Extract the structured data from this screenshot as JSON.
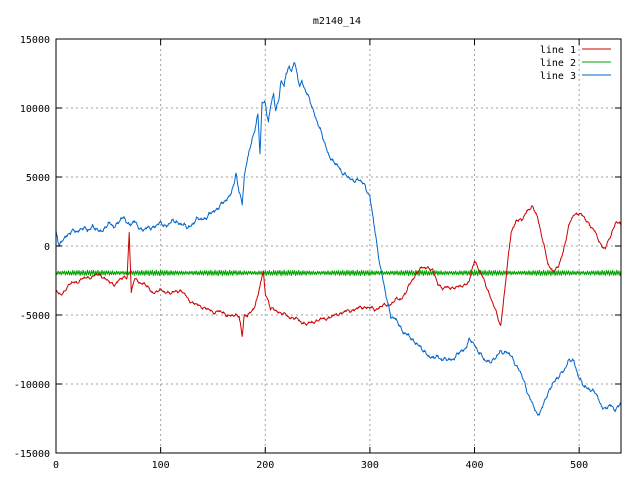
{
  "chart_data": {
    "type": "line",
    "title": "m2140_14",
    "xlabel": "",
    "ylabel": "",
    "xlim": [
      0,
      540
    ],
    "ylim": [
      -15000,
      15000
    ],
    "xticks": [
      0,
      100,
      200,
      300,
      400,
      500
    ],
    "yticks": [
      -15000,
      -10000,
      -5000,
      0,
      5000,
      10000,
      15000
    ],
    "grid": true,
    "legend_position": "top-right",
    "series": [
      {
        "name": "line 1",
        "color": "#cc0000",
        "x": [
          0,
          5,
          10,
          15,
          20,
          25,
          30,
          35,
          40,
          45,
          50,
          55,
          60,
          65,
          68,
          70,
          72,
          75,
          80,
          85,
          90,
          95,
          100,
          105,
          110,
          115,
          120,
          125,
          130,
          135,
          140,
          145,
          150,
          155,
          160,
          165,
          170,
          175,
          178,
          180,
          183,
          185,
          190,
          195,
          198,
          200,
          203,
          205,
          210,
          215,
          220,
          225,
          230,
          235,
          240,
          245,
          250,
          255,
          260,
          265,
          270,
          275,
          280,
          285,
          290,
          295,
          300,
          305,
          310,
          315,
          320,
          325,
          330,
          335,
          340,
          345,
          350,
          355,
          360,
          365,
          370,
          375,
          380,
          385,
          390,
          395,
          400,
          405,
          410,
          415,
          420,
          425,
          430,
          435,
          440,
          445,
          450,
          455,
          460,
          465,
          470,
          475,
          480,
          485,
          490,
          495,
          500,
          505,
          510,
          515,
          520,
          525,
          530,
          535,
          540
        ],
        "y": [
          -3300,
          -3600,
          -3000,
          -2700,
          -2600,
          -2400,
          -2300,
          -2200,
          -2100,
          -2200,
          -2600,
          -2800,
          -2500,
          -2300,
          -2200,
          1000,
          -3400,
          -2400,
          -2600,
          -2800,
          -3200,
          -3400,
          -3200,
          -3300,
          -3500,
          -3200,
          -3300,
          -3700,
          -4100,
          -4300,
          -4400,
          -4600,
          -4800,
          -4700,
          -4900,
          -5000,
          -5100,
          -5000,
          -6500,
          -5000,
          -5200,
          -4800,
          -4400,
          -3000,
          -1700,
          -3400,
          -4000,
          -4600,
          -4600,
          -4900,
          -5000,
          -5200,
          -5300,
          -5500,
          -5700,
          -5500,
          -5400,
          -5300,
          -5200,
          -5100,
          -4900,
          -4800,
          -4700,
          -4600,
          -4500,
          -4400,
          -4500,
          -4600,
          -4400,
          -4300,
          -4200,
          -3900,
          -3800,
          -3300,
          -2500,
          -1900,
          -1600,
          -1500,
          -1800,
          -2700,
          -3100,
          -3000,
          -3000,
          -3000,
          -2800,
          -2600,
          -1000,
          -1800,
          -2700,
          -3600,
          -4700,
          -5800,
          -2400,
          1000,
          1900,
          1800,
          2600,
          2800,
          2200,
          500,
          -1300,
          -1800,
          -1600,
          -300,
          1400,
          2300,
          2400,
          2000,
          1600,
          1000,
          200,
          -200,
          700,
          1800,
          1500
        ]
      },
      {
        "name": "line 2",
        "color": "#00a000",
        "x": [
          0,
          540
        ],
        "y": [
          -1950,
          -1950
        ],
        "oscillation": 200
      },
      {
        "name": "line 3",
        "color": "#0066cc",
        "x": [
          0,
          3,
          6,
          10,
          15,
          20,
          25,
          30,
          35,
          40,
          45,
          50,
          55,
          60,
          65,
          70,
          75,
          80,
          85,
          90,
          95,
          100,
          105,
          110,
          115,
          120,
          125,
          130,
          135,
          140,
          145,
          150,
          155,
          160,
          165,
          170,
          172,
          175,
          178,
          180,
          185,
          190,
          193,
          195,
          197,
          200,
          203,
          205,
          208,
          210,
          213,
          215,
          218,
          220,
          223,
          225,
          228,
          230,
          233,
          235,
          240,
          245,
          250,
          255,
          260,
          265,
          270,
          275,
          280,
          285,
          290,
          295,
          300,
          305,
          310,
          315,
          320,
          325,
          330,
          335,
          340,
          345,
          350,
          355,
          360,
          365,
          370,
          375,
          380,
          385,
          390,
          395,
          400,
          405,
          410,
          415,
          420,
          425,
          430,
          435,
          440,
          445,
          450,
          455,
          460,
          465,
          470,
          475,
          480,
          485,
          490,
          495,
          500,
          505,
          510,
          515,
          520,
          525,
          530,
          535,
          540
        ],
        "y": [
          1100,
          -100,
          400,
          800,
          1000,
          1100,
          1300,
          1100,
          1500,
          1000,
          1200,
          1600,
          1400,
          1800,
          2000,
          1600,
          1700,
          1300,
          1200,
          1300,
          1500,
          1600,
          1500,
          1700,
          1800,
          1600,
          1300,
          1600,
          1900,
          2000,
          2100,
          2500,
          2800,
          3100,
          3600,
          4300,
          5200,
          4000,
          3200,
          5000,
          7000,
          8500,
          9500,
          6500,
          10500,
          10400,
          9000,
          10000,
          11000,
          9800,
          10800,
          12000,
          11500,
          12500,
          13000,
          12800,
          13300,
          12500,
          11500,
          12000,
          11000,
          10000,
          9000,
          7800,
          6800,
          6000,
          5800,
          5200,
          4900,
          4800,
          4700,
          4500,
          3500,
          1000,
          -1500,
          -3500,
          -5000,
          -5400,
          -6000,
          -6400,
          -6800,
          -7000,
          -7600,
          -7800,
          -8200,
          -8000,
          -8200,
          -8300,
          -8100,
          -7800,
          -7500,
          -6800,
          -7200,
          -7700,
          -8400,
          -8300,
          -8200,
          -7600,
          -7700,
          -8000,
          -8600,
          -9400,
          -10400,
          -11400,
          -12300,
          -11600,
          -10800,
          -9800,
          -9600,
          -9000,
          -8300,
          -8400,
          -9500,
          -10300,
          -10300,
          -10600,
          -11400,
          -11800,
          -11600,
          -11800,
          -11400
        ]
      }
    ]
  }
}
